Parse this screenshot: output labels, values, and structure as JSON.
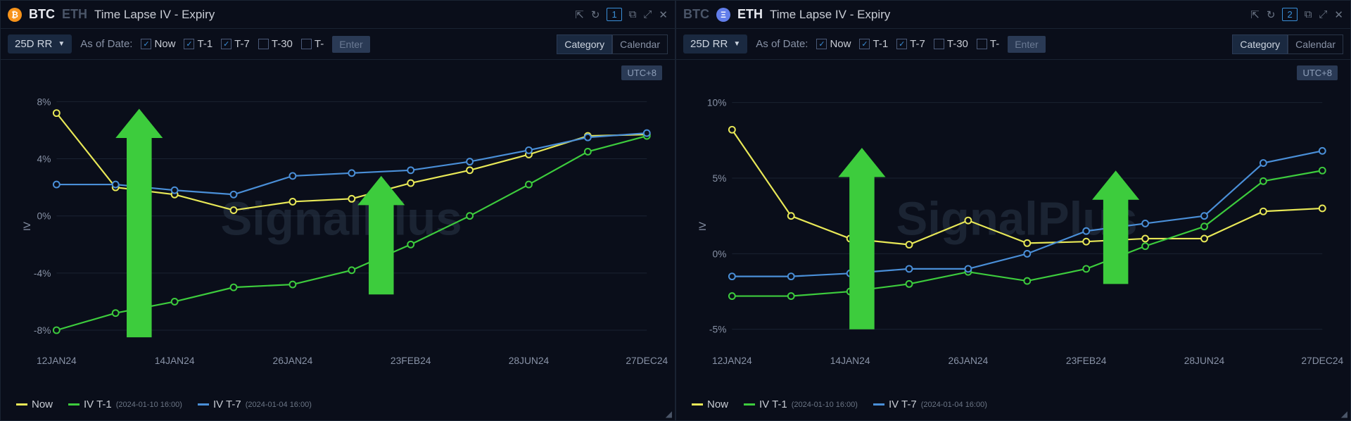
{
  "panels": [
    {
      "coins": [
        {
          "symbol": "BTC",
          "icon": "btc-icon",
          "glyph": "₿",
          "active": true
        },
        {
          "symbol": "ETH",
          "icon": "eth-icon",
          "glyph": "Ξ",
          "active": false
        }
      ],
      "title": "Time Lapse IV - Expiry",
      "badge_num": "1",
      "dropdown": "25D RR",
      "asof_label": "As of Date:",
      "checkboxes": [
        {
          "label": "Now",
          "checked": true
        },
        {
          "label": "T-1",
          "checked": true
        },
        {
          "label": "T-7",
          "checked": true
        },
        {
          "label": "T-30",
          "checked": false
        },
        {
          "label": "T-",
          "checked": false
        }
      ],
      "enter_placeholder": "Enter",
      "pills": [
        {
          "label": "Category",
          "active": true
        },
        {
          "label": "Calendar",
          "active": false
        }
      ],
      "utc": "UTC+8",
      "watermark": "SignalPlus",
      "y_axis": {
        "title": "IV",
        "ticks": [
          {
            "v": 8,
            "label": "8%"
          },
          {
            "v": 4,
            "label": "4%"
          },
          {
            "v": 0,
            "label": "0%"
          },
          {
            "v": -4,
            "label": "-4%"
          },
          {
            "v": -8,
            "label": "-8%"
          }
        ],
        "min": -9,
        "max": 9
      },
      "x_axis": {
        "labels": [
          "12JAN24",
          "14JAN24",
          "26JAN24",
          "23FEB24",
          "28JUN24",
          "27DEC24"
        ]
      },
      "series": [
        {
          "name": "Now",
          "color": "#e8e857",
          "points": [
            7.2,
            2.0,
            1.5,
            0.4,
            1.0,
            1.2,
            2.3,
            3.2,
            4.3,
            5.6,
            5.7
          ]
        },
        {
          "name": "IV T-1",
          "color": "#3dcc3d",
          "points": [
            -8.0,
            -6.8,
            -6.0,
            -5.0,
            -4.8,
            -3.8,
            -2.0,
            0.0,
            2.2,
            4.5,
            5.6
          ]
        },
        {
          "name": "IV T-7",
          "color": "#4a8fd8",
          "points": [
            2.2,
            2.2,
            1.8,
            1.5,
            2.8,
            3.0,
            3.2,
            3.8,
            4.6,
            5.5,
            5.8
          ]
        }
      ],
      "arrows": [
        {
          "x_idx": 1.4,
          "y_from": -8.5,
          "y_to": 7.5
        },
        {
          "x_idx": 5.5,
          "y_from": -5.5,
          "y_to": 2.8
        }
      ],
      "legend": [
        {
          "dash": "#e8e857",
          "label": "Now",
          "sub": ""
        },
        {
          "dash": "#3dcc3d",
          "label": "IV T-1",
          "sub": "(2024-01-10 16:00)"
        },
        {
          "dash": "#4a8fd8",
          "label": "IV T-7",
          "sub": "(2024-01-04 16:00)"
        }
      ]
    },
    {
      "coins": [
        {
          "symbol": "BTC",
          "icon": "btc-icon",
          "glyph": "₿",
          "active": false
        },
        {
          "symbol": "ETH",
          "icon": "eth-icon",
          "glyph": "Ξ",
          "active": true
        }
      ],
      "title": "Time Lapse IV - Expiry",
      "badge_num": "2",
      "dropdown": "25D RR",
      "asof_label": "As of Date:",
      "checkboxes": [
        {
          "label": "Now",
          "checked": true
        },
        {
          "label": "T-1",
          "checked": true
        },
        {
          "label": "T-7",
          "checked": true
        },
        {
          "label": "T-30",
          "checked": false
        },
        {
          "label": "T-",
          "checked": false
        }
      ],
      "enter_placeholder": "Enter",
      "pills": [
        {
          "label": "Category",
          "active": true
        },
        {
          "label": "Calendar",
          "active": false
        }
      ],
      "utc": "UTC+8",
      "watermark": "SignalPlus",
      "y_axis": {
        "title": "IV",
        "ticks": [
          {
            "v": 10,
            "label": "10%"
          },
          {
            "v": 5,
            "label": "5%"
          },
          {
            "v": 0,
            "label": "0%"
          },
          {
            "v": -5,
            "label": "-5%"
          }
        ],
        "min": -6,
        "max": 11
      },
      "x_axis": {
        "labels": [
          "12JAN24",
          "14JAN24",
          "26JAN24",
          "23FEB24",
          "28JUN24",
          "27DEC24"
        ]
      },
      "series": [
        {
          "name": "Now",
          "color": "#e8e857",
          "points": [
            8.2,
            2.5,
            1.0,
            0.6,
            2.2,
            0.7,
            0.8,
            1.0,
            1.0,
            2.8,
            3.0
          ]
        },
        {
          "name": "IV T-1",
          "color": "#3dcc3d",
          "points": [
            -2.8,
            -2.8,
            -2.5,
            -2.0,
            -1.2,
            -1.8,
            -1.0,
            0.5,
            1.8,
            4.8,
            5.5
          ]
        },
        {
          "name": "IV T-7",
          "color": "#4a8fd8",
          "points": [
            -1.5,
            -1.5,
            -1.3,
            -1.0,
            -1.0,
            0.0,
            1.5,
            2.0,
            2.5,
            6.0,
            6.8
          ]
        }
      ],
      "arrows": [
        {
          "x_idx": 2.2,
          "y_from": -5.0,
          "y_to": 7.0
        },
        {
          "x_idx": 6.5,
          "y_from": -2.0,
          "y_to": 5.5
        }
      ],
      "legend": [
        {
          "dash": "#e8e857",
          "label": "Now",
          "sub": ""
        },
        {
          "dash": "#3dcc3d",
          "label": "IV T-1",
          "sub": "(2024-01-10 16:00)"
        },
        {
          "dash": "#4a8fd8",
          "label": "IV T-7",
          "sub": "(2024-01-04 16:00)"
        }
      ]
    }
  ],
  "chart_style": {
    "marker_radius": 4.5,
    "background": "#0a0e1a",
    "grid_color": "#1a2332"
  }
}
